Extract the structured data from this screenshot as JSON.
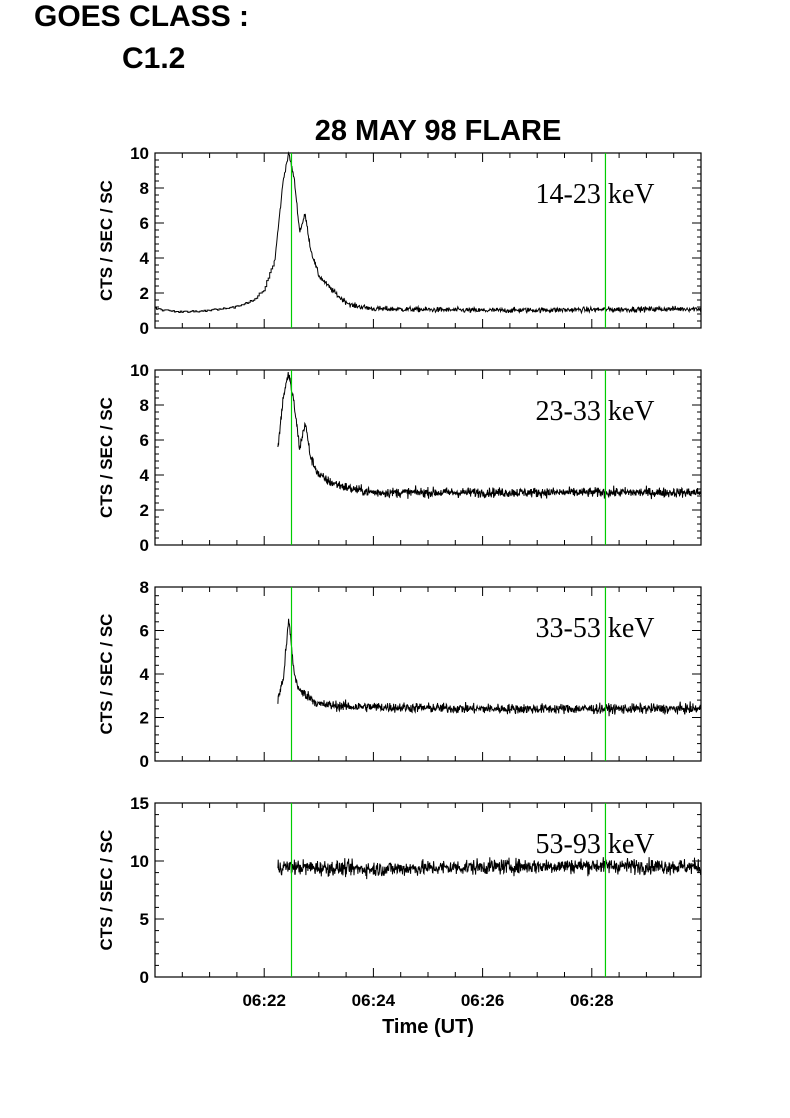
{
  "header": {
    "goes_label": "GOES CLASS :",
    "goes_value": "C1.2"
  },
  "chart_data": {
    "type": "line",
    "title": "28 MAY 98 FLARE",
    "xlabel": "Time (UT)",
    "x_tick_labels": [
      "06:22",
      "06:24",
      "06:26",
      "06:28"
    ],
    "x_range_minutes": [
      6.0,
      16.0
    ],
    "x_major_ticks_minutes": [
      8.0,
      10.0,
      12.0,
      14.0
    ],
    "x_minor_step_minutes": 0.5,
    "x_units_note": "minutes past 06:14 UT",
    "vertical_markers_minutes": [
      8.5,
      14.25
    ],
    "marker_color": "#00cc00",
    "line_color": "#000000",
    "grid": false,
    "panels": [
      {
        "band": "14-23 keV",
        "ylabel": "CTS / SEC / SC",
        "ylim": [
          0,
          10
        ],
        "yticks": [
          0,
          2,
          4,
          6,
          8,
          10
        ],
        "ytick_labels": [
          "0",
          "2",
          "4",
          "6",
          "8",
          "10"
        ],
        "start": 6.0,
        "profile": [
          [
            6.0,
            1.1
          ],
          [
            6.5,
            0.9
          ],
          [
            7.0,
            1.0
          ],
          [
            7.5,
            1.2
          ],
          [
            7.8,
            1.6
          ],
          [
            8.0,
            2.2
          ],
          [
            8.2,
            4.0
          ],
          [
            8.35,
            8.5
          ],
          [
            8.45,
            10.0
          ],
          [
            8.55,
            8.5
          ],
          [
            8.65,
            5.5
          ],
          [
            8.75,
            6.5
          ],
          [
            8.85,
            4.5
          ],
          [
            9.0,
            3.0
          ],
          [
            9.2,
            2.3
          ],
          [
            9.4,
            1.7
          ],
          [
            9.6,
            1.3
          ],
          [
            10.0,
            1.1
          ],
          [
            12.0,
            1.0
          ],
          [
            16.0,
            1.1
          ]
        ],
        "noise": 0.3,
        "step_until": 8.2
      },
      {
        "band": "23-33 keV",
        "ylabel": "CTS / SEC / SC",
        "ylim": [
          0,
          10
        ],
        "yticks": [
          0,
          2,
          4,
          6,
          8,
          10
        ],
        "ytick_labels": [
          "0",
          "2",
          "4",
          "6",
          "8",
          "10"
        ],
        "start": 8.25,
        "profile": [
          [
            8.25,
            5.5
          ],
          [
            8.35,
            8.5
          ],
          [
            8.45,
            9.8
          ],
          [
            8.55,
            8.0
          ],
          [
            8.65,
            5.5
          ],
          [
            8.75,
            7.0
          ],
          [
            8.85,
            5.0
          ],
          [
            9.0,
            4.0
          ],
          [
            9.2,
            3.6
          ],
          [
            9.6,
            3.2
          ],
          [
            10.0,
            3.0
          ],
          [
            13.0,
            3.0
          ],
          [
            16.0,
            3.0
          ]
        ],
        "noise": 0.55,
        "step_until": 0
      },
      {
        "band": "33-53 keV",
        "ylabel": "CTS / SEC / SC",
        "ylim": [
          0,
          8
        ],
        "yticks": [
          0,
          2,
          4,
          6,
          8
        ],
        "ytick_labels": [
          "0",
          "2",
          "4",
          "6",
          "8"
        ],
        "start": 8.25,
        "profile": [
          [
            8.25,
            2.8
          ],
          [
            8.35,
            3.8
          ],
          [
            8.45,
            6.5
          ],
          [
            8.55,
            4.0
          ],
          [
            8.65,
            3.2
          ],
          [
            8.8,
            3.0
          ],
          [
            9.0,
            2.6
          ],
          [
            9.6,
            2.5
          ],
          [
            12.0,
            2.4
          ],
          [
            16.0,
            2.4
          ]
        ],
        "noise": 0.45,
        "step_until": 0
      },
      {
        "band": "53-93 keV",
        "ylabel": "CTS / SEC / SC",
        "ylim": [
          0,
          15
        ],
        "yticks": [
          0,
          5,
          10,
          15
        ],
        "ytick_labels": [
          "0",
          "5",
          "10",
          "15"
        ],
        "start": 8.25,
        "profile": [
          [
            8.25,
            9.5
          ],
          [
            10.0,
            9.3
          ],
          [
            12.0,
            9.5
          ],
          [
            14.0,
            9.6
          ],
          [
            16.0,
            9.5
          ]
        ],
        "noise": 1.3,
        "step_until": 0
      }
    ]
  }
}
